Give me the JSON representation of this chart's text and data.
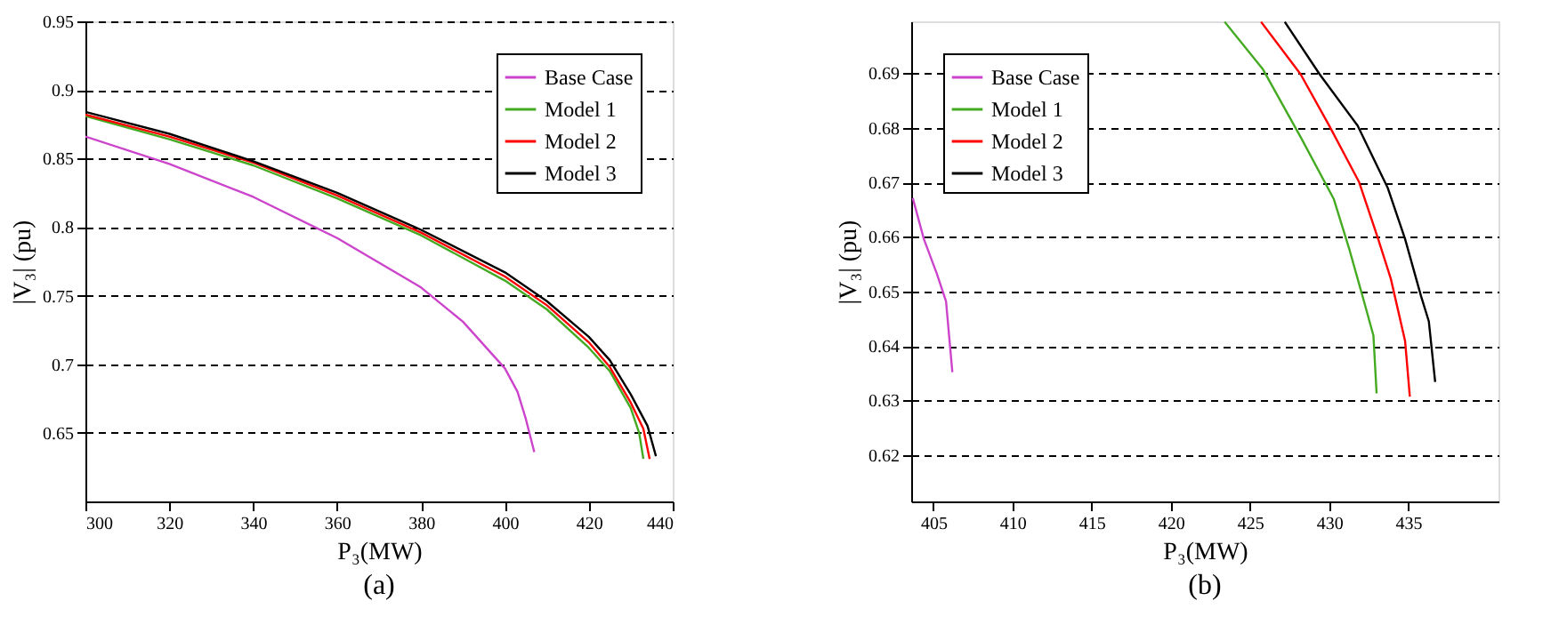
{
  "chart_data": [
    {
      "type": "line",
      "xlabel": "P₃(MW)",
      "ylabel": "|V₃| (pu)",
      "annotations": [
        "(a)"
      ],
      "xlim": [
        300,
        440
      ],
      "ylim": [
        0.6,
        0.95
      ],
      "xticks": [
        300,
        320,
        340,
        360,
        380,
        400,
        420,
        440
      ],
      "yticks": [
        0.65,
        0.7,
        0.75,
        0.8,
        0.85,
        0.9,
        0.95
      ],
      "grid": "y",
      "legend": "top right",
      "series": [
        {
          "name": "Base Case",
          "color": "#cc44cc",
          "x": [
            300,
            320,
            340,
            360,
            380,
            390,
            400,
            403,
            405,
            407
          ],
          "values": [
            0.866,
            0.846,
            0.822,
            0.792,
            0.756,
            0.731,
            0.697,
            0.68,
            0.66,
            0.636
          ]
        },
        {
          "name": "Model 1",
          "color": "#44aa22",
          "x": [
            300,
            320,
            340,
            360,
            380,
            400,
            410,
            420,
            425,
            430,
            432,
            433
          ],
          "values": [
            0.881,
            0.864,
            0.845,
            0.821,
            0.794,
            0.761,
            0.74,
            0.712,
            0.695,
            0.668,
            0.65,
            0.631
          ]
        },
        {
          "name": "Model 2",
          "color": "#ff0000",
          "x": [
            300,
            320,
            340,
            360,
            380,
            400,
            410,
            420,
            425,
            430,
            433,
            434.5
          ],
          "values": [
            0.882,
            0.866,
            0.847,
            0.823,
            0.796,
            0.764,
            0.743,
            0.716,
            0.698,
            0.672,
            0.653,
            0.631
          ]
        },
        {
          "name": "Model 3",
          "color": "#000000",
          "x": [
            300,
            320,
            340,
            360,
            380,
            400,
            410,
            420,
            425,
            430,
            434,
            436
          ],
          "values": [
            0.884,
            0.868,
            0.848,
            0.825,
            0.798,
            0.767,
            0.746,
            0.72,
            0.703,
            0.678,
            0.655,
            0.633
          ]
        }
      ]
    },
    {
      "type": "line",
      "xlabel": "P₃(MW)",
      "ylabel": "|V₃| (pu)",
      "annotations": [
        "(b)"
      ],
      "xlim": [
        403.6,
        440.7
      ],
      "ylim": [
        0.6115,
        0.6995
      ],
      "xticks": [
        405,
        410,
        415,
        420,
        425,
        430,
        435
      ],
      "yticks": [
        0.62,
        0.63,
        0.64,
        0.65,
        0.66,
        0.67,
        0.68,
        0.69
      ],
      "grid": "y",
      "legend": "top left",
      "series": [
        {
          "name": "Base Case",
          "color": "#cc44cc",
          "x": [
            403.7,
            404.4,
            405.2,
            405.8,
            406.2
          ],
          "values": [
            0.6671,
            0.6596,
            0.6534,
            0.6482,
            0.6352
          ]
        },
        {
          "name": "Model 1",
          "color": "#44aa22",
          "x": [
            423.4,
            425.8,
            428.2,
            430.3,
            431.3,
            432.2,
            432.8,
            433.0
          ],
          "values": [
            0.6994,
            0.6908,
            0.6783,
            0.6669,
            0.6575,
            0.6482,
            0.6419,
            0.6313
          ]
        },
        {
          "name": "Model 2",
          "color": "#ff0000",
          "x": [
            425.7,
            428.2,
            430.0,
            431.9,
            433.1,
            433.9,
            434.8,
            435.1
          ],
          "values": [
            0.6994,
            0.6898,
            0.6804,
            0.67,
            0.6596,
            0.6523,
            0.6409,
            0.6307
          ]
        },
        {
          "name": "Model 3",
          "color": "#000000",
          "x": [
            427.2,
            429.4,
            431.8,
            433.7,
            434.8,
            435.8,
            436.3,
            436.7
          ],
          "values": [
            0.6994,
            0.6898,
            0.6804,
            0.669,
            0.6596,
            0.6492,
            0.6445,
            0.6334
          ]
        }
      ]
    }
  ]
}
